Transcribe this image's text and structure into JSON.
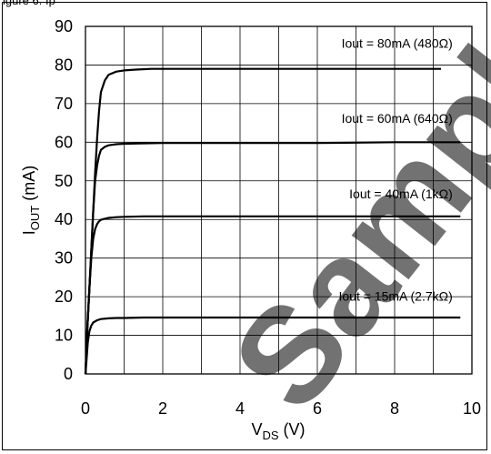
{
  "header": {
    "clipped_text": "igure 6. Ip"
  },
  "watermark": {
    "text": "Samples",
    "color": "#bcbcbc"
  },
  "chart_data": {
    "type": "line",
    "title": "",
    "xlabel_main": "V",
    "xlabel_sub": "DS",
    "xlabel_unit": " (V)",
    "ylabel_main": "I",
    "ylabel_sub": "OUT",
    "ylabel_unit": " (mA)",
    "xlim": [
      0,
      10
    ],
    "ylim": [
      0,
      90
    ],
    "xticks": [
      0,
      2,
      4,
      6,
      8,
      10
    ],
    "yticks": [
      0,
      10,
      20,
      30,
      40,
      50,
      60,
      70,
      80,
      90
    ],
    "grid": true,
    "series": [
      {
        "name": "Iout = 80mA (480Ω)",
        "color": "#000000",
        "x": [
          0,
          0.05,
          0.1,
          0.15,
          0.2,
          0.25,
          0.3,
          0.35,
          0.4,
          0.5,
          0.6,
          0.8,
          1.0,
          1.3,
          1.7,
          2.5,
          4,
          6,
          8,
          9.2
        ],
        "y": [
          0,
          12,
          22,
          32,
          42,
          52,
          61,
          68,
          73,
          76,
          77.5,
          78.3,
          78.6,
          78.8,
          79,
          79,
          79,
          79,
          79,
          79
        ]
      },
      {
        "name": "Iout = 60mA (640Ω)",
        "color": "#000000",
        "x": [
          0,
          0.05,
          0.1,
          0.15,
          0.2,
          0.25,
          0.3,
          0.35,
          0.4,
          0.5,
          0.6,
          0.8,
          1.0,
          1.4,
          2,
          4,
          6,
          8,
          9.7
        ],
        "y": [
          0,
          12,
          22,
          32,
          42,
          50,
          54,
          56.5,
          58,
          58.8,
          59.2,
          59.5,
          59.6,
          59.7,
          59.8,
          59.8,
          59.8,
          60,
          60
        ]
      },
      {
        "name": "Iout = 40mA (1kΩ)",
        "color": "#000000",
        "x": [
          0,
          0.05,
          0.1,
          0.15,
          0.2,
          0.25,
          0.3,
          0.35,
          0.4,
          0.5,
          0.6,
          0.8,
          1.0,
          1.5,
          2,
          4,
          6,
          8,
          9.7
        ],
        "y": [
          0,
          12,
          22,
          30,
          35,
          37.5,
          38.8,
          39.5,
          39.9,
          40.2,
          40.4,
          40.6,
          40.7,
          40.8,
          40.8,
          40.8,
          40.8,
          40.8,
          40.8
        ]
      },
      {
        "name": "Iout = 15mA (2.7kΩ)",
        "color": "#000000",
        "x": [
          0,
          0.03,
          0.06,
          0.1,
          0.15,
          0.2,
          0.3,
          0.4,
          0.6,
          0.8,
          1.0,
          1.5,
          2,
          4,
          6,
          8,
          9.7
        ],
        "y": [
          0,
          4,
          8,
          11,
          12.5,
          13.3,
          13.9,
          14.2,
          14.4,
          14.5,
          14.5,
          14.6,
          14.6,
          14.6,
          14.6,
          14.6,
          14.6
        ]
      }
    ],
    "annotations": [
      {
        "text": "Iout = 80mA (480Ω)",
        "x": 9.5,
        "y": 84.5
      },
      {
        "text": "Iout = 60mA (640Ω)",
        "x": 9.5,
        "y": 65
      },
      {
        "text": "Iout = 40mA (1kΩ)",
        "x": 9.5,
        "y": 45.5
      },
      {
        "text": "Iout = 15mA (2.7kΩ)",
        "x": 9.5,
        "y": 19
      }
    ]
  }
}
